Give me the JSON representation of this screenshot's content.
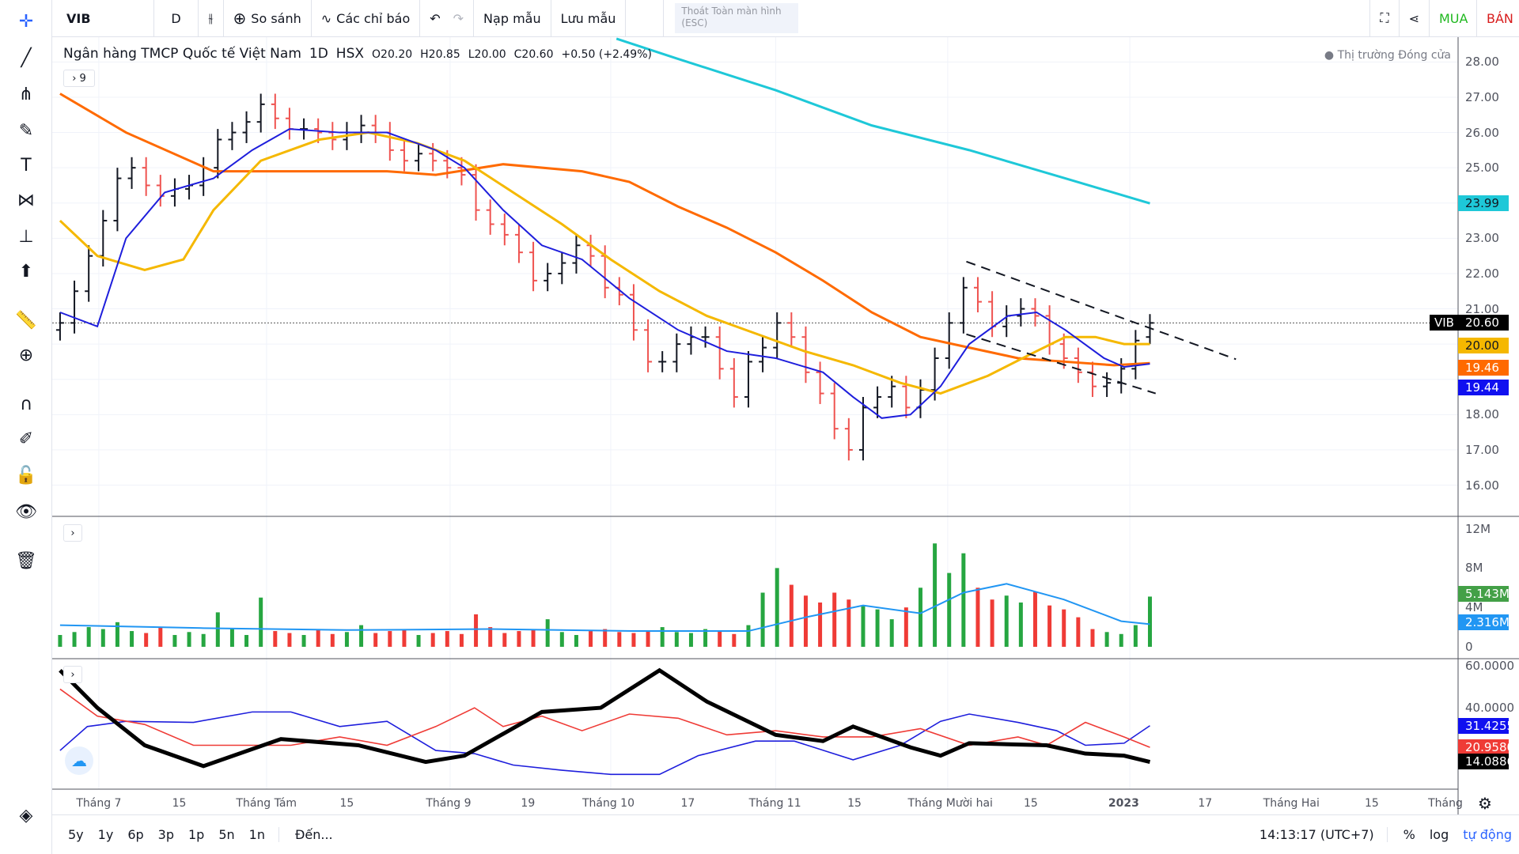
{
  "toolbar": {
    "symbol": "VIB",
    "interval": "D",
    "compare": "So sánh",
    "indicators": "Các chỉ báo",
    "load_template": "Nạp mẫu",
    "save_template": "Lưu mẫu",
    "exit_fullscreen": "Thoát Toàn màn hình (ESC)",
    "buy": "MUA",
    "sell": "BÁN"
  },
  "legend": {
    "name": "Ngân hàng TMCP Quốc tế Việt Nam",
    "interval": "1D",
    "exchange": "HSX",
    "open": "O20.20",
    "high": "H20.85",
    "low": "L20.00",
    "close": "C20.60",
    "change": "+0.50 (+2.49%)",
    "collapsed_count": "9"
  },
  "market_status": "Thị trường Đóng cửa",
  "price_axis": [
    "28.00",
    "27.00",
    "26.00",
    "25.00",
    "23.00",
    "22.00",
    "21.00",
    "18.00",
    "17.00",
    "16.00"
  ],
  "volume_axis": [
    "12M",
    "8M",
    "4M",
    "0"
  ],
  "osc_axis": [
    "60.0000",
    "40.0000"
  ],
  "tags": {
    "sym": "VIB",
    "last": "20.60",
    "ma200": "23.99",
    "ma20": "20.00",
    "ma50": "19.46",
    "ma10": "19.44",
    "vol": "5.143M",
    "vol_ma": "2.316M",
    "plus_di": "31.4255",
    "minus_di": "20.9580",
    "adx": "14.0886"
  },
  "colors": {
    "up": "#131722",
    "down": "#ef5350",
    "ma10": "#1e1edc",
    "ma20": "#f5b800",
    "ma50": "#ff6a00",
    "ma200": "#1ec8d8",
    "vol_up": "#26a641",
    "vol_down": "#ef3b36",
    "vol_ma": "#2196f3"
  },
  "time_axis": [
    "Tháng 7",
    "15",
    "Tháng Tám",
    "15",
    "Tháng 9",
    "19",
    "Tháng 10",
    "17",
    "Tháng 11",
    "15",
    "Tháng Mười hai",
    "15",
    "2023",
    "17",
    "Tháng Hai",
    "15",
    "Tháng"
  ],
  "bottom": {
    "ranges": [
      "5y",
      "1y",
      "6p",
      "3p",
      "1p",
      "5n",
      "1n"
    ],
    "goto": "Đến...",
    "clock": "14:13:17 (UTC+7)",
    "percent": "%",
    "log": "log",
    "auto": "tự động"
  },
  "chart_data": {
    "type": "ohlc",
    "price_range": [
      16,
      28
    ],
    "last_bar": {
      "o": 20.2,
      "h": 20.85,
      "l": 20.0,
      "c": 20.6
    },
    "closes": [
      20.6,
      21.5,
      22.5,
      23.5,
      24.7,
      25,
      24.5,
      24.2,
      24.4,
      24.5,
      25,
      25.8,
      26,
      26.3,
      26.8,
      26.4,
      26.1,
      26.1,
      26,
      25.8,
      26,
      26.2,
      26,
      25.5,
      25.2,
      25.4,
      25.2,
      25,
      24.8,
      23.8,
      23.4,
      23.1,
      22.6,
      21.8,
      22,
      22.3,
      22.8,
      22.5,
      21.6,
      21.4,
      20.4,
      19.5,
      19.5,
      20,
      20.2,
      20.2,
      19.3,
      18.5,
      19.5,
      19.9,
      20.6,
      20.2,
      19.2,
      18.6,
      17.6,
      17,
      18.2,
      18.5,
      18.8,
      18.2,
      18.7,
      19.6,
      20.6,
      21.6,
      21.2,
      20.5,
      20.8,
      21,
      20.8,
      20,
      19.6,
      19.2,
      18.8,
      18.9,
      19.3,
      20.1,
      20.6
    ],
    "ma": [
      {
        "name": "MA200",
        "color": "ma200",
        "points": [
          [
            38.8,
            28.66
          ],
          [
            43,
            28.1
          ],
          [
            49.9,
            27.2
          ],
          [
            56.6,
            26.2
          ],
          [
            63.4,
            25.5
          ],
          [
            70.1,
            24.7
          ],
          [
            76,
            23.99
          ]
        ]
      },
      {
        "name": "MA50",
        "color": "ma50",
        "points": [
          [
            0,
            27.1
          ],
          [
            4.6,
            26.0
          ],
          [
            10.7,
            24.9
          ],
          [
            16,
            24.9
          ],
          [
            22.8,
            24.9
          ],
          [
            26.2,
            24.8
          ],
          [
            30.9,
            25.1
          ],
          [
            36.4,
            24.9
          ],
          [
            39.7,
            24.6
          ],
          [
            43.1,
            23.9
          ],
          [
            46.5,
            23.3
          ],
          [
            49.9,
            22.6
          ],
          [
            53.2,
            21.8
          ],
          [
            56.6,
            20.9
          ],
          [
            60,
            20.2
          ],
          [
            63.4,
            19.9
          ],
          [
            66.8,
            19.6
          ],
          [
            70.1,
            19.5
          ],
          [
            73.5,
            19.4
          ],
          [
            76,
            19.46
          ]
        ]
      },
      {
        "name": "MA20",
        "color": "ma20",
        "points": [
          [
            0,
            23.5
          ],
          [
            2.6,
            22.5
          ],
          [
            5.9,
            22.1
          ],
          [
            8.6,
            22.4
          ],
          [
            10.7,
            23.8
          ],
          [
            14,
            25.2
          ],
          [
            18.1,
            25.8
          ],
          [
            21.5,
            26.0
          ],
          [
            24.9,
            25.7
          ],
          [
            28.2,
            25.2
          ],
          [
            31.6,
            24.3
          ],
          [
            35,
            23.4
          ],
          [
            38.4,
            22.4
          ],
          [
            41.8,
            21.5
          ],
          [
            45.1,
            20.8
          ],
          [
            48.5,
            20.3
          ],
          [
            51.9,
            19.8
          ],
          [
            55.3,
            19.4
          ],
          [
            58.6,
            18.9
          ],
          [
            61.4,
            18.6
          ],
          [
            64.7,
            19.1
          ],
          [
            68.1,
            19.8
          ],
          [
            70.1,
            20.2
          ],
          [
            72.2,
            20.2
          ],
          [
            74.2,
            20.0
          ],
          [
            76,
            20.0
          ]
        ]
      },
      {
        "name": "MA10",
        "color": "ma10",
        "points": [
          [
            0,
            20.9
          ],
          [
            2.6,
            20.5
          ],
          [
            4.6,
            23.0
          ],
          [
            7.3,
            24.3
          ],
          [
            10.7,
            24.7
          ],
          [
            13.4,
            25.5
          ],
          [
            16,
            26.1
          ],
          [
            19.5,
            26.0
          ],
          [
            22.8,
            26.0
          ],
          [
            26.2,
            25.5
          ],
          [
            28.2,
            25.0
          ],
          [
            30.9,
            23.8
          ],
          [
            33.6,
            22.8
          ],
          [
            36.4,
            22.4
          ],
          [
            39.7,
            21.3
          ],
          [
            43.1,
            20.4
          ],
          [
            46.5,
            19.8
          ],
          [
            49.9,
            19.6
          ],
          [
            53.2,
            19.2
          ],
          [
            55.3,
            18.5
          ],
          [
            57.3,
            17.9
          ],
          [
            59.3,
            18.0
          ],
          [
            61.4,
            18.8
          ],
          [
            63.4,
            20.0
          ],
          [
            66.1,
            20.8
          ],
          [
            68.1,
            20.9
          ],
          [
            70.1,
            20.4
          ],
          [
            72.8,
            19.6
          ],
          [
            74.2,
            19.35
          ],
          [
            76,
            19.44
          ]
        ]
      }
    ],
    "trendlines": [
      {
        "from": [
          63.2,
          22.34
        ],
        "to": [
          82,
          19.57
        ]
      },
      {
        "from": [
          63.2,
          20.28
        ],
        "to": [
          76.4,
          18.6
        ]
      }
    ],
    "volume_range": [
      0,
      12
    ],
    "volumes": [
      1.2,
      1.5,
      2.0,
      1.8,
      2.5,
      1.6,
      1.4,
      2.0,
      1.2,
      1.5,
      1.3,
      3.5,
      1.8,
      1.2,
      5.0,
      1.6,
      1.4,
      1.2,
      1.8,
      1.3,
      1.5,
      2.2,
      1.4,
      1.6,
      1.8,
      1.2,
      1.4,
      1.6,
      1.3,
      3.3,
      2.0,
      1.4,
      1.6,
      1.8,
      2.8,
      1.5,
      1.2,
      1.6,
      1.8,
      1.5,
      1.4,
      1.6,
      2.0,
      1.5,
      1.4,
      1.8,
      1.6,
      1.3,
      2.2,
      5.5,
      8.0,
      6.3,
      5.2,
      4.5,
      5.5,
      4.8,
      4.2,
      3.8,
      2.8,
      4.0,
      6.0,
      10.5,
      7.5,
      9.5,
      6.0,
      4.8,
      5.2,
      4.5,
      5.6,
      4.2,
      3.8,
      3.0,
      1.8,
      1.5,
      1.3,
      2.2,
      5.1
    ],
    "volume_ma": [
      [
        0,
        2.2
      ],
      [
        10,
        1.9
      ],
      [
        20,
        1.7
      ],
      [
        30,
        1.8
      ],
      [
        40,
        1.6
      ],
      [
        48,
        1.6
      ],
      [
        52,
        3.0
      ],
      [
        56,
        4.2
      ],
      [
        60,
        3.4
      ],
      [
        63,
        5.5
      ],
      [
        66,
        6.4
      ],
      [
        70,
        4.8
      ],
      [
        74,
        2.6
      ],
      [
        76,
        2.3
      ]
    ],
    "osc_range": [
      0,
      60
    ],
    "osc": [
      {
        "name": "+DI",
        "color": "#1e1edc",
        "points": [
          [
            0,
            19.5
          ],
          [
            1.9,
            31
          ],
          [
            4.6,
            33.5
          ],
          [
            9.3,
            33
          ],
          [
            13.4,
            38
          ],
          [
            16.1,
            38
          ],
          [
            19.5,
            31
          ],
          [
            22.8,
            33.5
          ],
          [
            26.2,
            19.5
          ],
          [
            28.9,
            18
          ],
          [
            31.6,
            12.5
          ],
          [
            35,
            10
          ],
          [
            38.4,
            8
          ],
          [
            41.8,
            8
          ],
          [
            44.5,
            17
          ],
          [
            48.5,
            24
          ],
          [
            51.2,
            24
          ],
          [
            55.3,
            15
          ],
          [
            58.6,
            22
          ],
          [
            61.4,
            33.5
          ],
          [
            63.4,
            37
          ],
          [
            66.8,
            33
          ],
          [
            69.5,
            29
          ],
          [
            71.5,
            22
          ],
          [
            74.2,
            23
          ],
          [
            76,
            31.4
          ]
        ]
      },
      {
        "name": "-DI",
        "color": "#ef3b36",
        "points": [
          [
            0,
            49
          ],
          [
            2.6,
            36
          ],
          [
            5.9,
            32
          ],
          [
            9.3,
            22
          ],
          [
            12.7,
            22
          ],
          [
            16.1,
            22
          ],
          [
            19.5,
            26
          ],
          [
            22.8,
            22
          ],
          [
            26.2,
            31
          ],
          [
            28.9,
            40
          ],
          [
            30.9,
            31
          ],
          [
            33.6,
            36
          ],
          [
            36.4,
            29
          ],
          [
            39.7,
            37
          ],
          [
            43.1,
            35
          ],
          [
            46.5,
            27
          ],
          [
            49.9,
            29
          ],
          [
            53.2,
            26
          ],
          [
            56.6,
            26
          ],
          [
            60,
            30
          ],
          [
            63.4,
            22
          ],
          [
            66.8,
            26
          ],
          [
            68.8,
            22
          ],
          [
            71.5,
            33
          ],
          [
            74.2,
            26
          ],
          [
            76,
            21
          ]
        ]
      },
      {
        "name": "ADX",
        "color": "#000000",
        "points": [
          [
            0,
            58
          ],
          [
            2.6,
            40
          ],
          [
            5.9,
            22
          ],
          [
            10,
            12
          ],
          [
            15.4,
            25
          ],
          [
            20.8,
            22
          ],
          [
            25.5,
            14
          ],
          [
            28.2,
            17
          ],
          [
            33.6,
            38
          ],
          [
            37.7,
            40
          ],
          [
            41.8,
            58
          ],
          [
            45.1,
            43
          ],
          [
            49.9,
            27
          ],
          [
            53.2,
            24
          ],
          [
            55.3,
            31
          ],
          [
            59.3,
            21
          ],
          [
            61.4,
            17
          ],
          [
            63.4,
            23
          ],
          [
            68.8,
            22
          ],
          [
            71.5,
            18
          ],
          [
            74.2,
            17
          ],
          [
            76,
            14
          ]
        ]
      }
    ]
  }
}
